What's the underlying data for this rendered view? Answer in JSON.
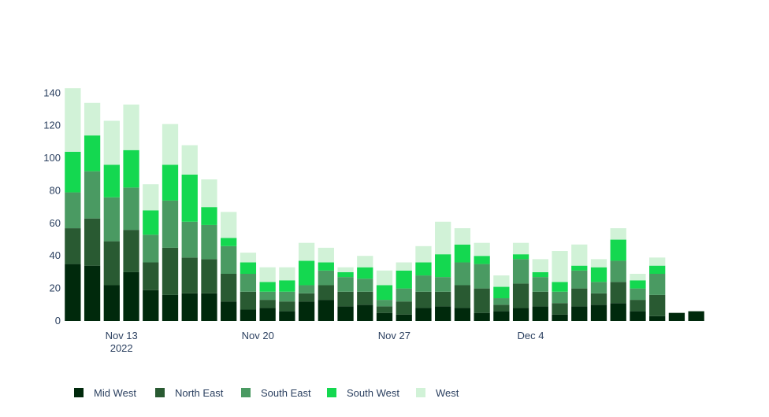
{
  "chart_data": {
    "type": "bar",
    "stacked": true,
    "x_dates": [
      "2022-11-11",
      "2022-11-12",
      "2022-11-13",
      "2022-11-14",
      "2022-11-15",
      "2022-11-16",
      "2022-11-17",
      "2022-11-18",
      "2022-11-19",
      "2022-11-20",
      "2022-11-21",
      "2022-11-22",
      "2022-11-23",
      "2022-11-24",
      "2022-11-25",
      "2022-11-26",
      "2022-11-27",
      "2022-11-28",
      "2022-11-29",
      "2022-11-30",
      "2022-12-01",
      "2022-12-02",
      "2022-12-03",
      "2022-12-04",
      "2022-12-05",
      "2022-12-06",
      "2022-12-07",
      "2022-12-08",
      "2022-12-09",
      "2022-12-10",
      "2022-12-11",
      "2022-12-12",
      "2022-12-13"
    ],
    "x_ticks": [
      {
        "date": "2022-11-14",
        "label": "Nov 13",
        "sublabel": "2022"
      },
      {
        "date": "2022-11-21",
        "label": "Nov 20",
        "sublabel": ""
      },
      {
        "date": "2022-11-28",
        "label": "Nov 27",
        "sublabel": ""
      },
      {
        "date": "2022-12-05",
        "label": "Dec 4",
        "sublabel": ""
      }
    ],
    "ylim": [
      0,
      145
    ],
    "y_ticks": [
      0,
      20,
      40,
      60,
      80,
      100,
      120,
      140
    ],
    "legend_position": "bottom",
    "series": [
      {
        "name": "Mid West",
        "color": "#00290c",
        "values": [
          35,
          34,
          22,
          30,
          19,
          16,
          17,
          17,
          12,
          7,
          8,
          6,
          12,
          13,
          9,
          10,
          5,
          4,
          8,
          9,
          8,
          5,
          6,
          8,
          9,
          4,
          9,
          10,
          11,
          6,
          3,
          5,
          6
        ]
      },
      {
        "name": "North East",
        "color": "#295a32",
        "values": [
          22,
          29,
          27,
          26,
          17,
          29,
          22,
          21,
          17,
          11,
          5,
          6,
          5,
          9,
          9,
          8,
          4,
          8,
          10,
          9,
          14,
          15,
          4,
          15,
          9,
          7,
          11,
          7,
          13,
          7,
          13,
          0,
          0
        ]
      },
      {
        "name": "South East",
        "color": "#4a9a62",
        "values": [
          22,
          29,
          27,
          26,
          17,
          29,
          22,
          21,
          17,
          11,
          5,
          6,
          5,
          9,
          9,
          8,
          4,
          8,
          10,
          9,
          14,
          15,
          4,
          15,
          9,
          7,
          11,
          7,
          13,
          7,
          13,
          0,
          0
        ]
      },
      {
        "name": "South West",
        "color": "#14d850",
        "values": [
          25,
          22,
          20,
          23,
          15,
          22,
          29,
          11,
          5,
          7,
          6,
          7,
          15,
          5,
          3,
          7,
          9,
          11,
          8,
          14,
          11,
          5,
          7,
          3,
          3,
          6,
          3,
          9,
          13,
          5,
          5,
          0,
          0
        ]
      },
      {
        "name": "West",
        "color": "#d1f2d7",
        "values": [
          39,
          20,
          27,
          28,
          16,
          25,
          18,
          17,
          16,
          6,
          9,
          8,
          11,
          9,
          3,
          7,
          9,
          5,
          10,
          20,
          10,
          8,
          7,
          7,
          8,
          19,
          13,
          5,
          7,
          4,
          5,
          0,
          0
        ]
      }
    ]
  }
}
